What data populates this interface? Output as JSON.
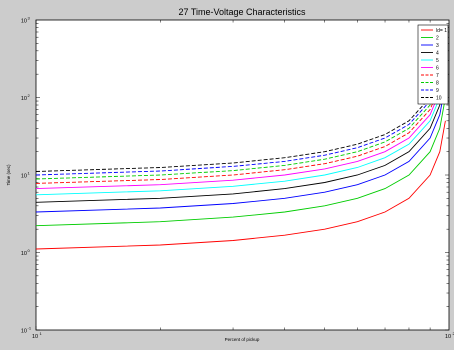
{
  "chart_data": {
    "type": "line",
    "title": "27 Time-Voltage Characteristics",
    "xlabel": "Percent of pickup",
    "ylabel": "Time (sec)",
    "x_scale": "log",
    "y_scale": "log",
    "xlim": [
      10,
      100
    ],
    "ylim": [
      0.1,
      1000
    ],
    "y_ticks": [
      {
        "value": 0.1,
        "base": "10",
        "exp": "-1"
      },
      {
        "value": 1,
        "base": "10",
        "exp": "0"
      },
      {
        "value": 10,
        "base": "10",
        "exp": "1"
      },
      {
        "value": 100,
        "base": "10",
        "exp": "2"
      },
      {
        "value": 1000,
        "base": "10",
        "exp": "3"
      }
    ],
    "x_ticks": [
      {
        "value": 10,
        "base": "10",
        "exp": "1"
      },
      {
        "value": 100,
        "base": "10",
        "exp": "2"
      }
    ],
    "grid": false,
    "legend_position": "top-right",
    "x": [
      10,
      20,
      30,
      40,
      50,
      60,
      70,
      80,
      90,
      95,
      98
    ],
    "series": [
      {
        "name": "ld= 1",
        "color": "#ff0000",
        "dash": "solid",
        "values": [
          1.11,
          1.25,
          1.43,
          1.67,
          2.0,
          2.5,
          3.33,
          5.0,
          10.0,
          20.0,
          50.0
        ]
      },
      {
        "name": "2",
        "color": "#00cc00",
        "dash": "solid",
        "values": [
          2.22,
          2.5,
          2.86,
          3.33,
          4.0,
          5.0,
          6.67,
          10.0,
          20.0,
          40.0,
          100.0
        ]
      },
      {
        "name": "3",
        "color": "#0000ff",
        "dash": "solid",
        "values": [
          3.33,
          3.75,
          4.29,
          5.0,
          6.0,
          7.5,
          10.0,
          15.0,
          30.0,
          60.0,
          150.0
        ]
      },
      {
        "name": "4",
        "color": "#000000",
        "dash": "solid",
        "values": [
          4.44,
          5.0,
          5.71,
          6.67,
          8.0,
          10.0,
          13.3,
          20.0,
          40.0,
          80.0,
          200.0
        ]
      },
      {
        "name": "5",
        "color": "#00ffff",
        "dash": "solid",
        "values": [
          5.56,
          6.25,
          7.14,
          8.33,
          10.0,
          12.5,
          16.7,
          25.0,
          50.0,
          100.0,
          250.0
        ]
      },
      {
        "name": "6",
        "color": "#ff00ff",
        "dash": "solid",
        "values": [
          6.67,
          7.5,
          8.57,
          10.0,
          12.0,
          15.0,
          20.0,
          30.0,
          60.0,
          120.0,
          300.0
        ]
      },
      {
        "name": "7",
        "color": "#ff0000",
        "dash": "dashed",
        "values": [
          7.78,
          8.75,
          10.0,
          11.7,
          14.0,
          17.5,
          23.3,
          35.0,
          70.0,
          140.0,
          350.0
        ]
      },
      {
        "name": "8",
        "color": "#00cc00",
        "dash": "dashed",
        "values": [
          8.89,
          10.0,
          11.4,
          13.3,
          16.0,
          20.0,
          26.7,
          40.0,
          80.0,
          160.0,
          400.0
        ]
      },
      {
        "name": "9",
        "color": "#0000ff",
        "dash": "dashed",
        "values": [
          10.0,
          11.25,
          12.9,
          15.0,
          18.0,
          22.5,
          30.0,
          45.0,
          90.0,
          180.0,
          450.0
        ]
      },
      {
        "name": "10",
        "color": "#000000",
        "dash": "dashed",
        "values": [
          11.1,
          12.5,
          14.3,
          16.7,
          20.0,
          25.0,
          33.3,
          50.0,
          100.0,
          200.0,
          500.0
        ]
      }
    ]
  }
}
